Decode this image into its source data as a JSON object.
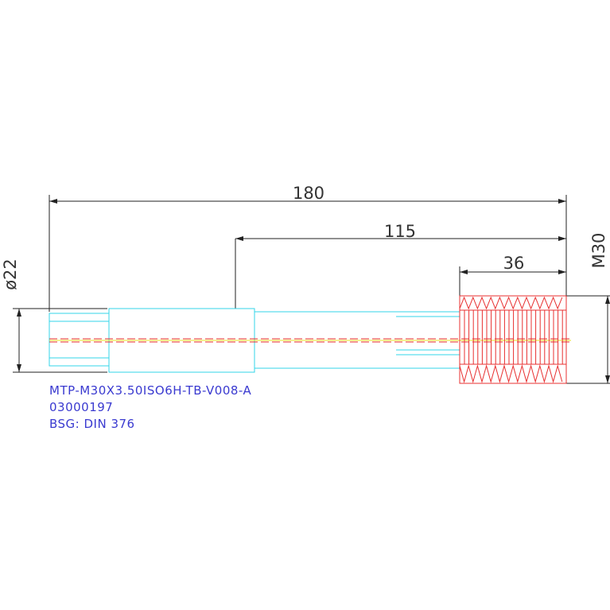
{
  "dimensions": [
    {
      "label": "180"
    },
    {
      "label": "115"
    },
    {
      "label": "36"
    },
    {
      "label": "M30"
    },
    {
      "label": "ø22"
    }
  ],
  "notes": [
    "MTP-M30X3.50ISO6H-TB-V008-A",
    "03000197",
    "BSG: DIN  376"
  ]
}
